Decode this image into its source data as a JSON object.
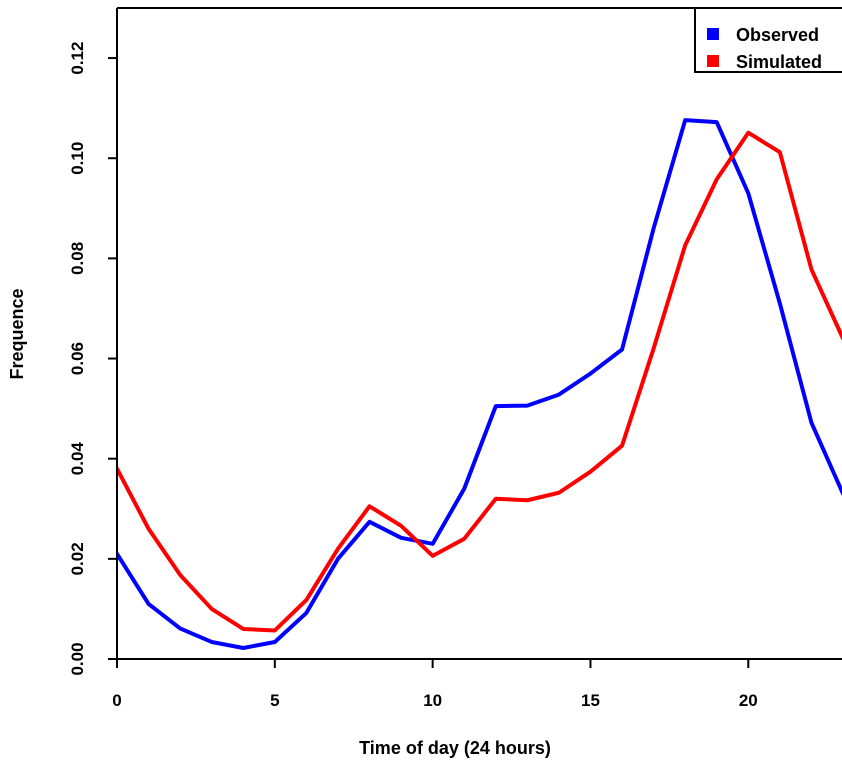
{
  "chart_data": {
    "type": "line",
    "title": "",
    "xlabel": "Time of day (24 hours)",
    "ylabel": "Frequence",
    "xlim": [
      0,
      23
    ],
    "ylim": [
      0,
      0.13
    ],
    "x_ticks": [
      0,
      5,
      10,
      15,
      20
    ],
    "x_tick_labels": [
      "0",
      "5",
      "10",
      "15",
      "20"
    ],
    "y_ticks": [
      0,
      0.02,
      0.04,
      0.06,
      0.08,
      0.1,
      0.12
    ],
    "y_tick_labels": [
      "0.00",
      "0.02",
      "0.04",
      "0.06",
      "0.08",
      "0.10",
      "0.12"
    ],
    "grid": false,
    "legend_position": "top-right",
    "x": [
      0,
      1,
      2,
      3,
      4,
      5,
      6,
      7,
      8,
      9,
      10,
      11,
      12,
      13,
      14,
      15,
      16,
      17,
      18,
      19,
      20,
      21,
      22,
      23
    ],
    "series": [
      {
        "name": "Observed",
        "color": "#0000ff",
        "values": [
          0.021,
          0.011,
          0.0061,
          0.0034,
          0.0022,
          0.0034,
          0.0092,
          0.02,
          0.0274,
          0.0242,
          0.023,
          0.034,
          0.0505,
          0.0506,
          0.0528,
          0.057,
          0.0618,
          0.086,
          0.1076,
          0.1072,
          0.093,
          0.071,
          0.0472,
          0.033
        ]
      },
      {
        "name": "Simulated",
        "color": "#ff0000",
        "values": [
          0.038,
          0.026,
          0.0168,
          0.01,
          0.006,
          0.0057,
          0.0118,
          0.022,
          0.0305,
          0.0266,
          0.0206,
          0.024,
          0.032,
          0.0317,
          0.0332,
          0.0374,
          0.0426,
          0.062,
          0.0826,
          0.0958,
          0.1051,
          0.1012,
          0.0778,
          0.064
        ]
      }
    ]
  }
}
